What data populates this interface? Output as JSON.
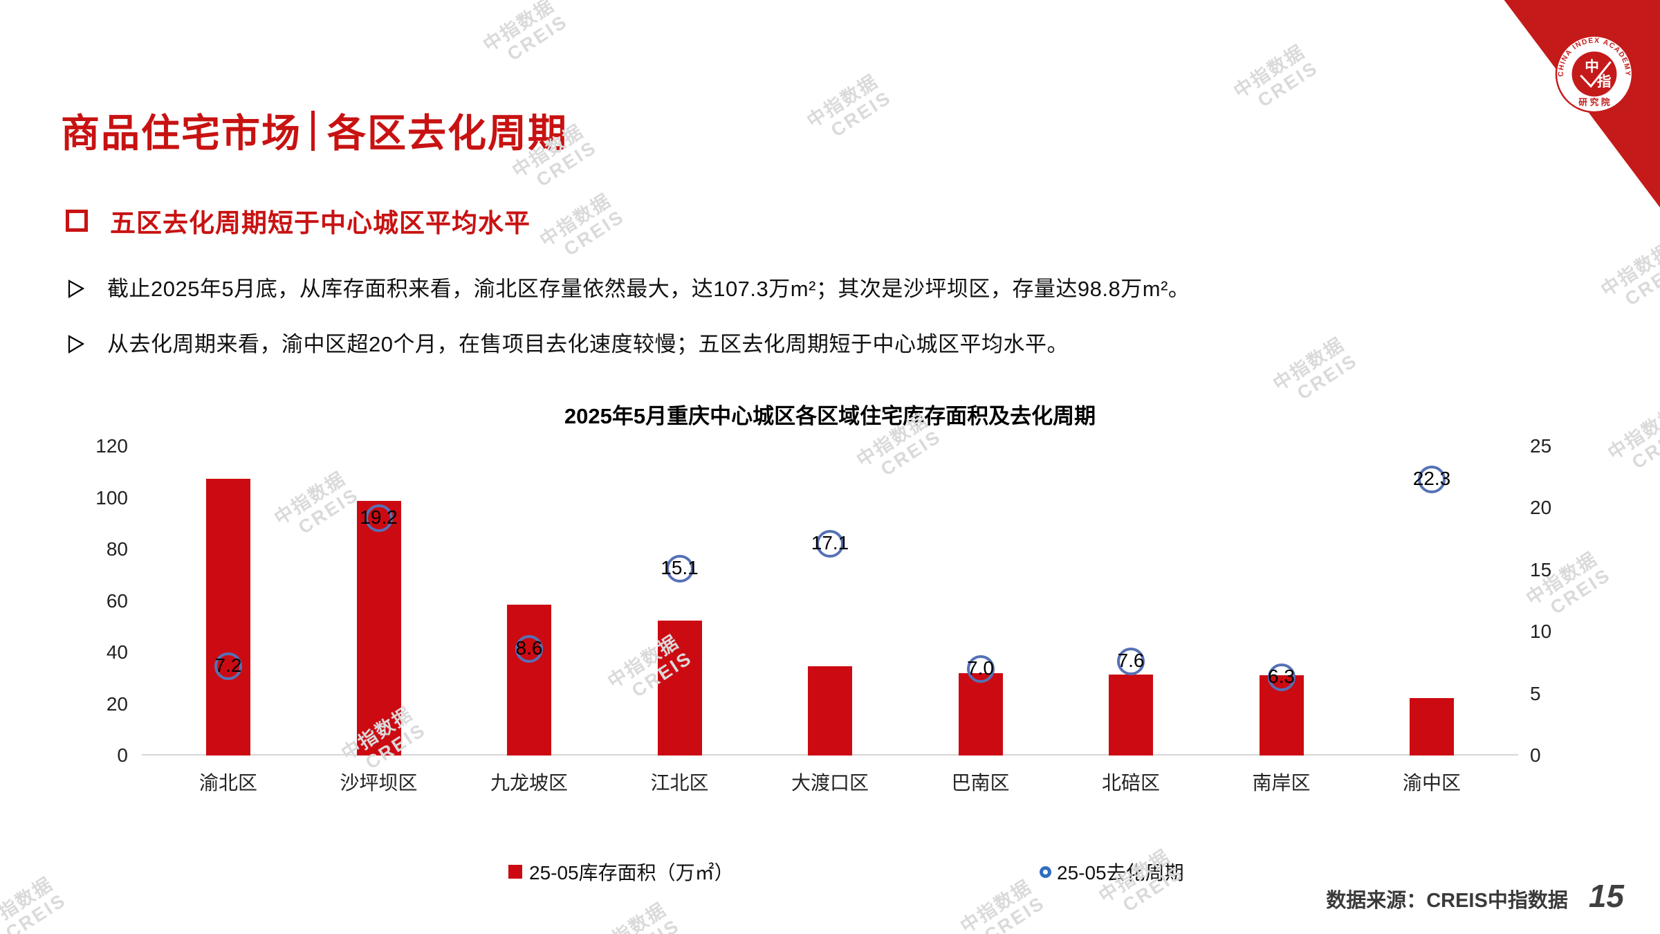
{
  "slide": {
    "title_left": "商品住宅市场",
    "title_right": "各区去化周期",
    "section_header": "五区去化周期短于中心城区平均水平",
    "bullets": [
      "截止2025年5月底，从库存面积来看，渝北区存量依然最大，达107.3万m²；其次是沙坪坝区，存量达98.8万m²。",
      "从去化周期来看，渝中区超20个月，在售项目去化速度较慢；五区去化周期短于中心城区平均水平。"
    ],
    "source": "数据来源：CREIS中指数据",
    "page_number": "15",
    "watermark": {
      "line1": "中指数据",
      "line2": "CREIS"
    },
    "logo": {
      "top_arc": "CHINA INDEX ACADEMY",
      "bottom_arc": "研 究 院",
      "center_top": "中",
      "center_bottom": "指"
    }
  },
  "colors": {
    "accent_red": "#C81212",
    "bar_red": "#CC0A12",
    "marker_blue": "#5671B5",
    "legend_ring_blue": "#2F6EC0",
    "watermark_gray": "#DADADA"
  },
  "chart_data": {
    "type": "bar",
    "title": "2025年5月重庆中心城区各区域住宅库存面积及去化周期",
    "categories": [
      "渝北区",
      "沙坪坝区",
      "九龙坡区",
      "江北区",
      "大渡口区",
      "巴南区",
      "北碚区",
      "南岸区",
      "渝中区"
    ],
    "series": [
      {
        "name": "25-05库存面积（万㎡）",
        "type": "bar",
        "axis": "left",
        "values": [
          107.3,
          98.8,
          58.5,
          52.4,
          34.6,
          32.0,
          31.5,
          31.1,
          22.4
        ]
      },
      {
        "name": "25-05去化周期",
        "type": "scatter",
        "axis": "right",
        "values": [
          7.2,
          19.2,
          8.6,
          15.1,
          17.1,
          7.0,
          7.6,
          6.3,
          22.3
        ],
        "labels": [
          "7.2",
          "19.2",
          "8.6",
          "15.1",
          "17.1",
          "7.0",
          "7.6",
          "6.3",
          "22.3"
        ]
      }
    ],
    "left_axis": {
      "min": 0,
      "max": 120,
      "ticks": [
        120,
        100,
        80,
        60,
        40,
        20,
        0
      ],
      "label": ""
    },
    "right_axis": {
      "min": 0,
      "max": 25,
      "ticks": [
        25,
        20,
        15,
        10,
        5,
        0
      ],
      "label": ""
    },
    "grid": false,
    "legend_position": "bottom"
  }
}
